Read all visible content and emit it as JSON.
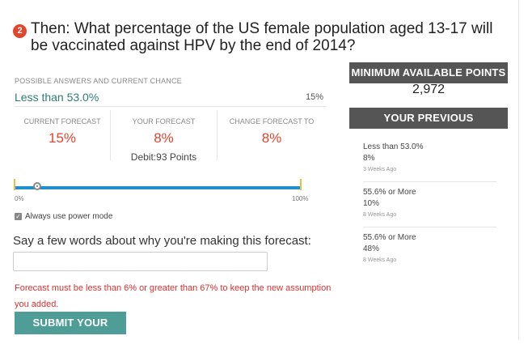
{
  "question": {
    "number": "2",
    "text": "Then: What percentage of the US female population aged 13-17 will be vaccinated against HPV by the end of 2014?"
  },
  "forecast": {
    "section_label": "POSSIBLE ANSWERS AND CURRENT CHANCE",
    "answer": "Less than 53.0%",
    "answer_chance": "15%",
    "current_label": "CURRENT FORECAST",
    "current_value": "15%",
    "yours_label": "YOUR FORECAST",
    "yours_value": "8%",
    "debit": "Debit:93 Points",
    "change_label": "CHANGE FORECAST TO",
    "change_value": "8%"
  },
  "slider": {
    "value_fraction": 0.08,
    "min_label": "0%",
    "max_label": "100%",
    "track_color": "#1f8fcf",
    "tick_color": "#e6c23a"
  },
  "power_mode": {
    "label": "Always use power mode",
    "checked": true
  },
  "reason": {
    "prompt": "Say a few words about why you're making this forecast:",
    "value": ""
  },
  "error_text": "Forecast must be less than 6% or greater than 67% to keep the new assumption you added.",
  "submit_label": "SUBMIT YOUR FORECAST",
  "sidebar": {
    "min_points_header": "MINIMUM AVAILABLE POINTS",
    "min_points_value": "2,972",
    "prev_header": "YOUR PREVIOUS FORECASTS",
    "previous": [
      {
        "answer": "Less than 53.0%",
        "value": "8%",
        "time": "3 Weeks Ago"
      },
      {
        "answer": "55.6% or More",
        "value": "10%",
        "time": "8 Weeks Ago"
      },
      {
        "answer": "55.6% or More",
        "value": "48%",
        "time": "8 Weeks Ago"
      }
    ]
  },
  "colors": {
    "accent_red": "#e4432d",
    "answer_teal": "#2e7d74",
    "submit_green": "#4e9e97",
    "sidebar_header": "#555555"
  }
}
